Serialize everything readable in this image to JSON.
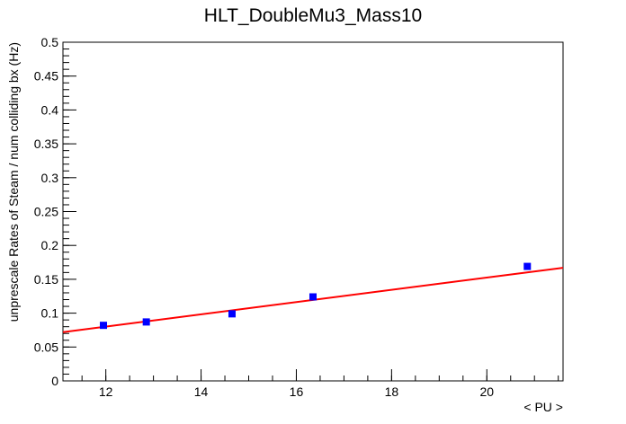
{
  "chart_data": {
    "type": "scatter",
    "title": "HLT_DoubleMu3_Mass10",
    "xlabel": "< PU >",
    "ylabel": "unprescale Rates of Steam / num colliding bx (Hz)",
    "xlim": [
      11.1,
      21.6
    ],
    "ylim": [
      0,
      0.5
    ],
    "x_ticks": [
      {
        "value": 12,
        "label": "12"
      },
      {
        "value": 14,
        "label": "14"
      },
      {
        "value": 16,
        "label": "16"
      },
      {
        "value": 18,
        "label": "18"
      },
      {
        "value": 20,
        "label": "20"
      }
    ],
    "y_ticks": [
      {
        "value": 0,
        "label": "0"
      },
      {
        "value": 0.05,
        "label": "0.05"
      },
      {
        "value": 0.1,
        "label": "0.1"
      },
      {
        "value": 0.15,
        "label": "0.15"
      },
      {
        "value": 0.2,
        "label": "0.2"
      },
      {
        "value": 0.25,
        "label": "0.25"
      },
      {
        "value": 0.3,
        "label": "0.3"
      },
      {
        "value": 0.35,
        "label": "0.35"
      },
      {
        "value": 0.4,
        "label": "0.4"
      },
      {
        "value": 0.45,
        "label": "0.45"
      },
      {
        "value": 0.5,
        "label": "0.5"
      }
    ],
    "grid": false,
    "series": [
      {
        "marker": "square",
        "color": "#0000ff",
        "points": [
          {
            "x": 11.95,
            "y": 0.082
          },
          {
            "x": 12.85,
            "y": 0.087
          },
          {
            "x": 14.65,
            "y": 0.099
          },
          {
            "x": 16.35,
            "y": 0.124
          },
          {
            "x": 20.85,
            "y": 0.169
          }
        ]
      }
    ],
    "fit": {
      "type": "linear",
      "color": "#ff0000",
      "x_range": [
        11.1,
        21.6
      ],
      "y_range": [
        0.072,
        0.167
      ]
    }
  }
}
